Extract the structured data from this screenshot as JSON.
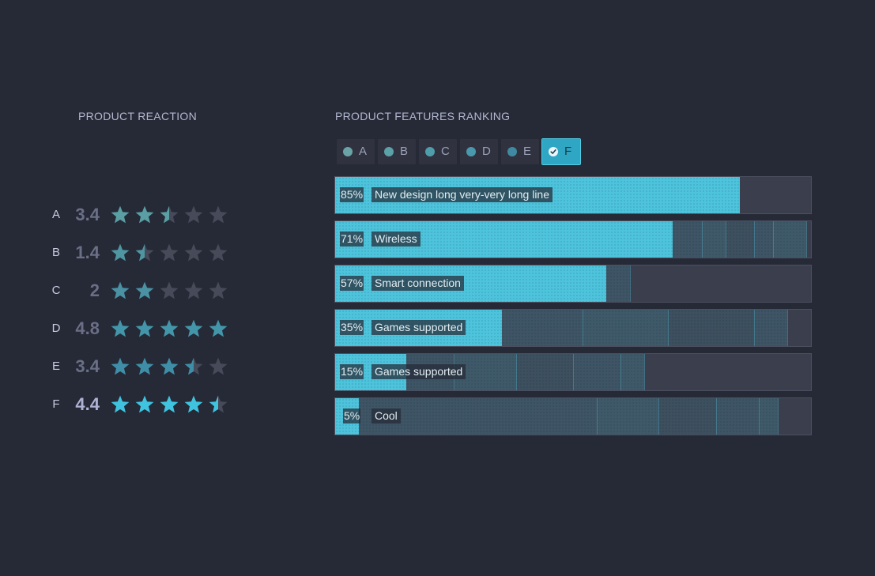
{
  "left_title": "PRODUCT REACTION",
  "right_title": "PRODUCT FEATURES RANKING",
  "colors": {
    "background": "#262936",
    "star_a": "#5a9fa3",
    "star_b": "#4f96a2",
    "star_c": "#4a91a4",
    "star_d": "#4396aa",
    "star_e": "#3f8ea8",
    "star_f": "#3fc3df",
    "star_empty": "#474a58",
    "bar_fill": "#4ec4dc",
    "accent_selected": "#2fa7c4"
  },
  "ratings": [
    {
      "letter": "A",
      "value": "3.4",
      "score": 2.5,
      "color": "#5a9fa3",
      "active": false
    },
    {
      "letter": "B",
      "value": "1.4",
      "score": 1.5,
      "color": "#4f96a2",
      "active": false
    },
    {
      "letter": "C",
      "value": "2",
      "score": 2,
      "color": "#4a91a4",
      "active": false
    },
    {
      "letter": "D",
      "value": "4.8",
      "score": 5,
      "color": "#4396aa",
      "active": false
    },
    {
      "letter": "E",
      "value": "3.4",
      "score": 3.5,
      "color": "#3f8ea8",
      "active": false
    },
    {
      "letter": "F",
      "value": "4.4",
      "score": 4.5,
      "color": "#3fc3df",
      "active": true
    }
  ],
  "tabs": [
    {
      "label": "A",
      "color": "#6aa3a6",
      "selected": false
    },
    {
      "label": "B",
      "color": "#5aa1a8",
      "selected": false
    },
    {
      "label": "C",
      "color": "#4f9dab",
      "selected": false
    },
    {
      "label": "D",
      "color": "#4a98ad",
      "selected": false
    },
    {
      "label": "E",
      "color": "#3f8aa2",
      "selected": false
    },
    {
      "label": "F",
      "color": "#2fa7c4",
      "selected": true
    }
  ],
  "chart_data": {
    "type": "bar",
    "title": "PRODUCT FEATURES RANKING",
    "xlim": [
      0,
      100
    ],
    "categories": [
      "New design long very-very long line",
      "Wireless",
      "Smart connection",
      "Games supported",
      "Games supported",
      "Cool"
    ],
    "pct_labels": [
      "85%",
      "71%",
      "57%",
      "35%",
      "15%",
      "5%"
    ],
    "series": [
      {
        "name": "F",
        "values": [
          85,
          71,
          57,
          35,
          15,
          5
        ]
      }
    ],
    "ghost_series": [
      [
        85
      ],
      [
        71,
        77,
        82,
        88,
        92,
        99
      ],
      [
        57,
        62
      ],
      [
        35,
        52,
        70,
        88,
        95
      ],
      [
        15,
        25,
        38,
        50,
        60,
        65
      ],
      [
        5,
        55,
        68,
        80,
        89,
        93
      ]
    ]
  }
}
